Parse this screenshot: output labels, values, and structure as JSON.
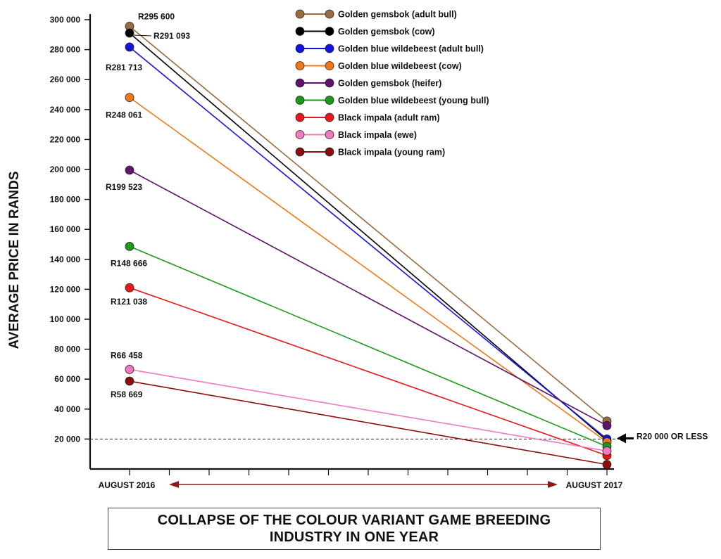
{
  "chart_data": {
    "type": "line",
    "title_lines": [
      "COLLAPSE OF THE COLOUR VARIANT GAME BREEDING",
      "INDUSTRY IN ONE YEAR"
    ],
    "ylabel": "AVERAGE PRICE IN RANDS",
    "categories": [
      "AUGUST 2016",
      "AUGUST 2017"
    ],
    "ylim": [
      0,
      300000
    ],
    "yticks": [
      {
        "value": 20000,
        "label": "20 000"
      },
      {
        "value": 40000,
        "label": "40 000"
      },
      {
        "value": 60000,
        "label": "60 000"
      },
      {
        "value": 80000,
        "label": "80 000"
      },
      {
        "value": 100000,
        "label": "100 000"
      },
      {
        "value": 120000,
        "label": "120 000"
      },
      {
        "value": 140000,
        "label": "140 000"
      },
      {
        "value": 160000,
        "label": "160 000"
      },
      {
        "value": 180000,
        "label": "180 000"
      },
      {
        "value": 200000,
        "label": "200 000"
      },
      {
        "value": 220000,
        "label": "220 000"
      },
      {
        "value": 240000,
        "label": "240 000"
      },
      {
        "value": 260000,
        "label": "260 000"
      },
      {
        "value": 280000,
        "label": "280 000"
      },
      {
        "value": 300000,
        "label": "300 000"
      }
    ],
    "threshold": {
      "value": 20000,
      "label": "R20 000 OR LESS"
    },
    "legend_position": "top-right",
    "series": [
      {
        "name": "Golden gemsbok  (adult bull)",
        "color": "#9a6b3e",
        "values": [
          295600,
          32000
        ],
        "label": "R295 600"
      },
      {
        "name": "Golden gemsbok  (cow)",
        "color": "#000000",
        "values": [
          291093,
          19000
        ],
        "label": "R291 093"
      },
      {
        "name": "Golden blue wildebeest (adult bull)",
        "color": "#1313e0",
        "values": [
          281713,
          20000
        ],
        "label": "R281 713"
      },
      {
        "name": "Golden blue wildebeest (cow)",
        "color": "#f07818",
        "values": [
          248061,
          18000
        ],
        "label": "R248 061"
      },
      {
        "name": "Golden gemsbok  (heifer)",
        "color": "#5e1468",
        "values": [
          199523,
          29000
        ],
        "label": "R199 523"
      },
      {
        "name": "Golden blue wildebeest (young bull)",
        "color": "#1a9a1a",
        "values": [
          148666,
          15000
        ],
        "label": "R148 666"
      },
      {
        "name": "Black impala (adult ram)",
        "color": "#e81818",
        "values": [
          121038,
          9000
        ],
        "label": "R121 038"
      },
      {
        "name": "Black impala (ewe)",
        "color": "#f07ac0",
        "values": [
          66458,
          12000
        ],
        "label": "R66 458"
      },
      {
        "name": "Black impala (young ram)",
        "color": "#8b0e0e",
        "values": [
          58669,
          3000
        ],
        "label": "R58 669"
      }
    ],
    "arrow_color": "#8b1a1a"
  }
}
